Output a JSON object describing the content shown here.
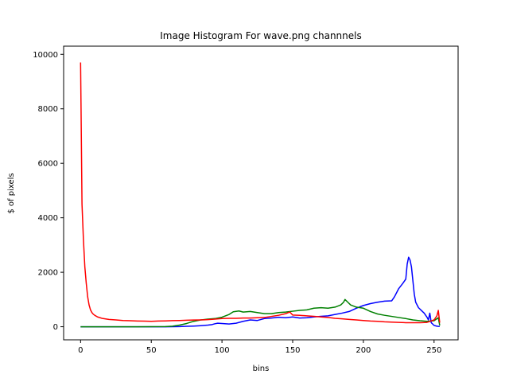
{
  "chart_data": {
    "type": "line",
    "title": "Image Histogram For wave.png channnels",
    "xlabel": "bins",
    "ylabel": "$ of pixels",
    "xlim": [
      -12,
      267
    ],
    "ylim": [
      -480,
      10300
    ],
    "xticks": [
      0,
      50,
      100,
      150,
      200,
      250
    ],
    "yticks": [
      0,
      2000,
      4000,
      6000,
      8000,
      10000
    ],
    "grid": false,
    "series": [
      {
        "color": "#0000ff",
        "points": [
          [
            0,
            0
          ],
          [
            20,
            0
          ],
          [
            40,
            0
          ],
          [
            60,
            0
          ],
          [
            70,
            5
          ],
          [
            75,
            15
          ],
          [
            80,
            25
          ],
          [
            85,
            40
          ],
          [
            90,
            60
          ],
          [
            93,
            80
          ],
          [
            95,
            110
          ],
          [
            97,
            130
          ],
          [
            100,
            120
          ],
          [
            105,
            100
          ],
          [
            110,
            130
          ],
          [
            115,
            200
          ],
          [
            120,
            250
          ],
          [
            125,
            230
          ],
          [
            130,
            300
          ],
          [
            135,
            320
          ],
          [
            140,
            350
          ],
          [
            145,
            330
          ],
          [
            150,
            360
          ],
          [
            155,
            320
          ],
          [
            160,
            330
          ],
          [
            165,
            360
          ],
          [
            170,
            380
          ],
          [
            175,
            400
          ],
          [
            180,
            450
          ],
          [
            185,
            500
          ],
          [
            190,
            560
          ],
          [
            195,
            680
          ],
          [
            200,
            780
          ],
          [
            205,
            850
          ],
          [
            210,
            900
          ],
          [
            215,
            940
          ],
          [
            220,
            950
          ],
          [
            222,
            1100
          ],
          [
            225,
            1400
          ],
          [
            228,
            1600
          ],
          [
            230,
            1750
          ],
          [
            231,
            2300
          ],
          [
            232,
            2550
          ],
          [
            233,
            2450
          ],
          [
            234,
            2200
          ],
          [
            235,
            1700
          ],
          [
            236,
            1200
          ],
          [
            237,
            900
          ],
          [
            239,
            700
          ],
          [
            241,
            600
          ],
          [
            243,
            500
          ],
          [
            245,
            350
          ],
          [
            246,
            250
          ],
          [
            247,
            500
          ],
          [
            248,
            150
          ],
          [
            250,
            50
          ],
          [
            252,
            20
          ],
          [
            254,
            10
          ]
        ]
      },
      {
        "color": "#008000",
        "points": [
          [
            0,
            0
          ],
          [
            20,
            0
          ],
          [
            40,
            0
          ],
          [
            60,
            5
          ],
          [
            65,
            20
          ],
          [
            70,
            60
          ],
          [
            75,
            120
          ],
          [
            80,
            200
          ],
          [
            85,
            250
          ],
          [
            90,
            280
          ],
          [
            95,
            300
          ],
          [
            100,
            350
          ],
          [
            105,
            450
          ],
          [
            108,
            550
          ],
          [
            112,
            580
          ],
          [
            115,
            540
          ],
          [
            120,
            560
          ],
          [
            125,
            520
          ],
          [
            130,
            480
          ],
          [
            135,
            480
          ],
          [
            140,
            520
          ],
          [
            145,
            540
          ],
          [
            150,
            570
          ],
          [
            155,
            600
          ],
          [
            160,
            620
          ],
          [
            165,
            680
          ],
          [
            170,
            700
          ],
          [
            175,
            680
          ],
          [
            180,
            720
          ],
          [
            184,
            800
          ],
          [
            186,
            900
          ],
          [
            187,
            1000
          ],
          [
            189,
            900
          ],
          [
            191,
            800
          ],
          [
            195,
            720
          ],
          [
            200,
            680
          ],
          [
            205,
            560
          ],
          [
            210,
            470
          ],
          [
            215,
            420
          ],
          [
            220,
            380
          ],
          [
            225,
            340
          ],
          [
            230,
            300
          ],
          [
            235,
            250
          ],
          [
            240,
            220
          ],
          [
            245,
            200
          ],
          [
            250,
            220
          ],
          [
            253,
            330
          ],
          [
            254,
            50
          ]
        ]
      },
      {
        "color": "#ff0000",
        "points": [
          [
            0,
            9700
          ],
          [
            1,
            4500
          ],
          [
            2,
            3200
          ],
          [
            3,
            2200
          ],
          [
            4,
            1600
          ],
          [
            5,
            1100
          ],
          [
            6,
            800
          ],
          [
            7,
            620
          ],
          [
            8,
            520
          ],
          [
            9,
            460
          ],
          [
            10,
            420
          ],
          [
            12,
            360
          ],
          [
            15,
            310
          ],
          [
            20,
            270
          ],
          [
            25,
            250
          ],
          [
            30,
            230
          ],
          [
            35,
            220
          ],
          [
            40,
            210
          ],
          [
            45,
            205
          ],
          [
            50,
            200
          ],
          [
            55,
            210
          ],
          [
            60,
            215
          ],
          [
            65,
            225
          ],
          [
            70,
            230
          ],
          [
            75,
            240
          ],
          [
            80,
            245
          ],
          [
            85,
            250
          ],
          [
            90,
            260
          ],
          [
            95,
            280
          ],
          [
            100,
            300
          ],
          [
            105,
            310
          ],
          [
            110,
            310
          ],
          [
            115,
            320
          ],
          [
            120,
            320
          ],
          [
            125,
            330
          ],
          [
            130,
            340
          ],
          [
            135,
            380
          ],
          [
            140,
            420
          ],
          [
            145,
            480
          ],
          [
            148,
            540
          ],
          [
            150,
            430
          ],
          [
            155,
            420
          ],
          [
            160,
            400
          ],
          [
            165,
            380
          ],
          [
            170,
            360
          ],
          [
            175,
            340
          ],
          [
            180,
            310
          ],
          [
            185,
            290
          ],
          [
            190,
            270
          ],
          [
            195,
            250
          ],
          [
            200,
            230
          ],
          [
            205,
            210
          ],
          [
            210,
            200
          ],
          [
            215,
            180
          ],
          [
            220,
            170
          ],
          [
            225,
            160
          ],
          [
            230,
            150
          ],
          [
            235,
            150
          ],
          [
            240,
            150
          ],
          [
            245,
            160
          ],
          [
            250,
            250
          ],
          [
            252,
            400
          ],
          [
            253,
            600
          ],
          [
            254,
            150
          ]
        ]
      }
    ]
  }
}
